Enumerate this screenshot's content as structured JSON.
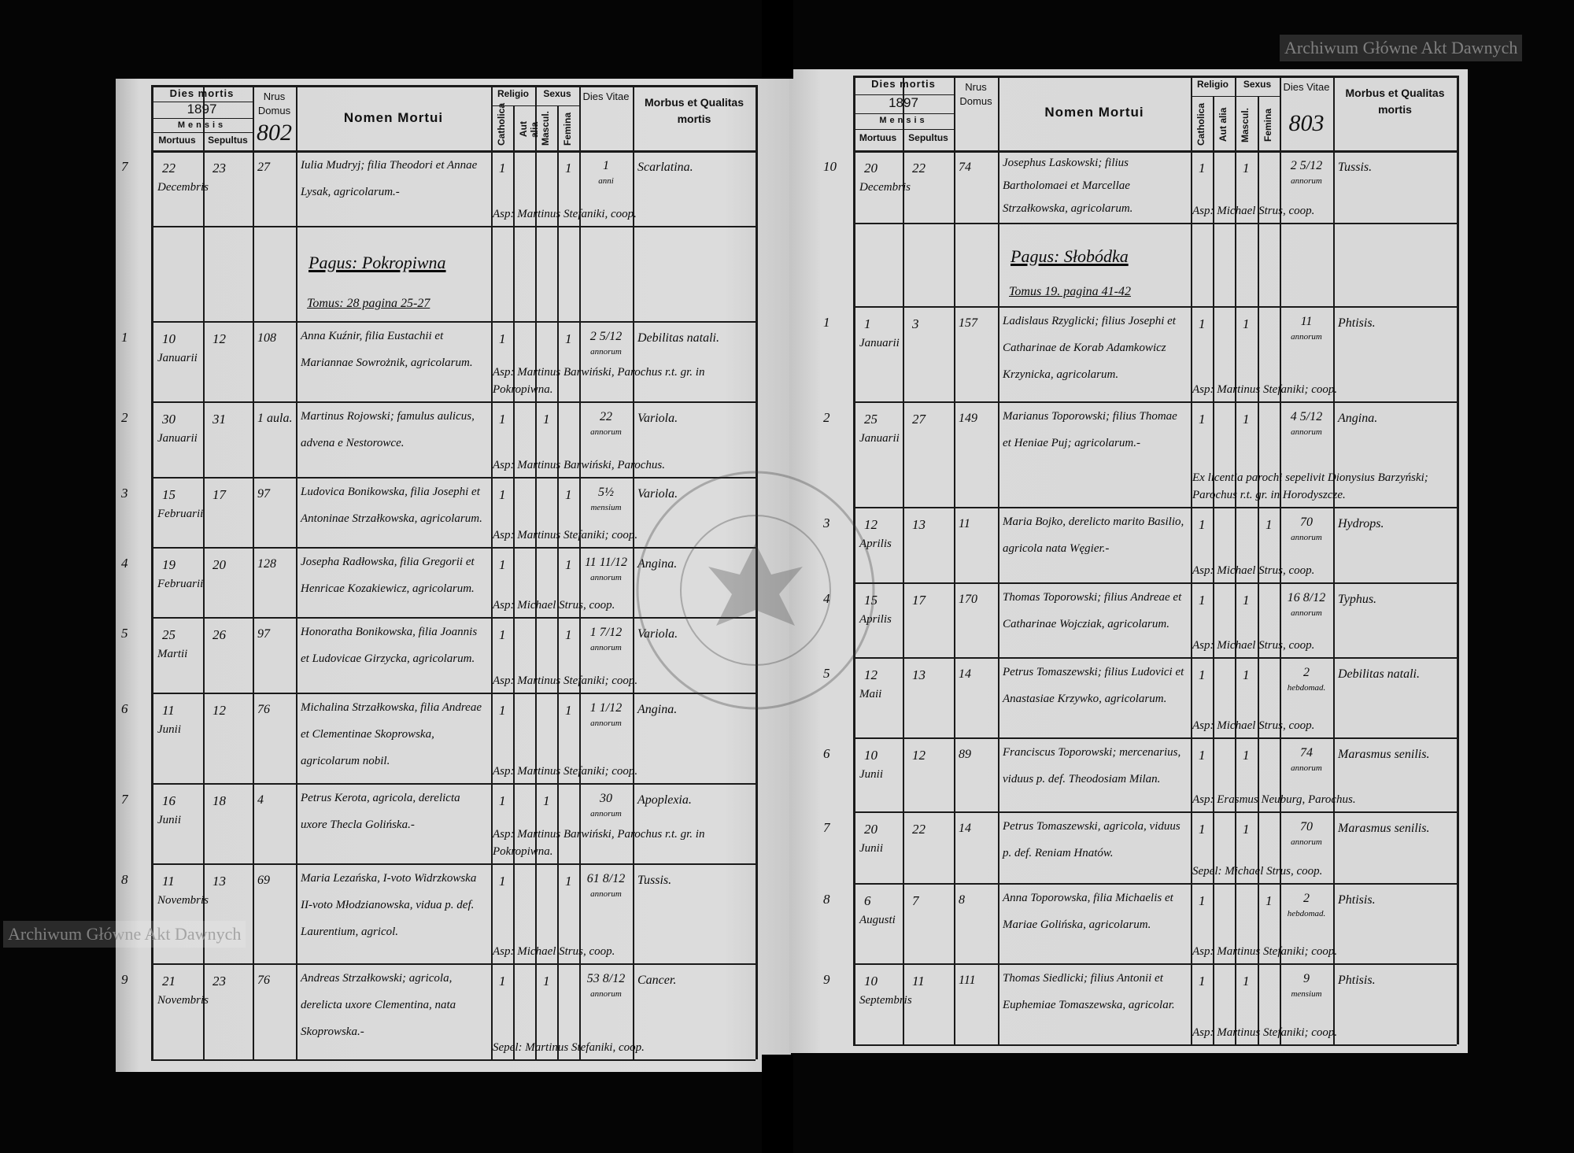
{
  "document": {
    "headers": {
      "dies_mortis": "Dies mortis",
      "year": "1897",
      "mensis": "Mensis",
      "mortuus": "Mortuus",
      "sepultus": "Sepultus",
      "nrus_domus": "Nrus Domus",
      "nomen_mortui": "Nomen Mortui",
      "religio": "Religio",
      "catholica": "Catholica",
      "aut_alia": "Aut alia",
      "sexus": "Sexus",
      "mascul": "Mascul.",
      "femina": "Femina",
      "dies_vitae": "Dies Vitae",
      "morbus": "Morbus et Qualitas mortis"
    },
    "watermark": "Archiwum Główne Akt Dawnych",
    "seal_text": "ARCHIWUM GŁÓWNE AKT DAWNYCH"
  },
  "left": {
    "page_number": "802",
    "pagus": "Pagus: Pokropiwna",
    "tomus": "Tomus: 28 pagina 25-27",
    "entries": [
      {
        "no": "7",
        "mortuus": "22",
        "sepultus": "23",
        "month": "Decembris",
        "domus": "27",
        "name": "Iulia Mudryj; filia Theodori et Annae Lysak, agricolarum.-",
        "sex": "F",
        "age": "1",
        "age_unit": "anni",
        "morbus": "Scarlatina.",
        "note": "Asp: Martinus Stefaniki, coop."
      },
      {
        "no": "1",
        "mortuus": "10",
        "sepultus": "12",
        "month": "Januarii",
        "domus": "108",
        "name": "Anna Kuźnir, filia Eustachii et Mariannae Sowrożnik, agricolarum.",
        "sex": "F",
        "age": "2 5/12",
        "age_unit": "annorum",
        "morbus": "Debilitas natali.",
        "note": "Asp: Martinus Barwiński, Parochus r.t. gr. in Pokropiwna."
      },
      {
        "no": "2",
        "mortuus": "30",
        "sepultus": "31",
        "month": "Januarii",
        "domus": "1 aula.",
        "name": "Martinus Rojowski; famulus aulicus, advena e Nestorowce.",
        "sex": "M",
        "age": "22",
        "age_unit": "annorum",
        "morbus": "Variola.",
        "note": "Asp: Martinus Barwiński, Parochus."
      },
      {
        "no": "3",
        "mortuus": "15",
        "sepultus": "17",
        "month": "Februarii",
        "domus": "97",
        "name": "Ludovica Bonikowska, filia Josephi et Antoninae Strzałkowska, agricolarum.",
        "sex": "F",
        "age": "5½",
        "age_unit": "mensium",
        "morbus": "Variola.",
        "note": "Asp: Martinus Stefaniki; coop."
      },
      {
        "no": "4",
        "mortuus": "19",
        "sepultus": "20",
        "month": "Februarii",
        "domus": "128",
        "name": "Josepha Radłowska, filia Gregorii et Henricae Kozakiewicz, agricolarum.",
        "sex": "F",
        "age": "11 11/12",
        "age_unit": "annorum",
        "morbus": "Angina.",
        "note": "Asp: Michael Strus, coop."
      },
      {
        "no": "5",
        "mortuus": "25",
        "sepultus": "26",
        "month": "Martii",
        "domus": "97",
        "name": "Honoratha Bonikowska, filia Joannis et Ludovicae Girzycka, agricolarum.",
        "sex": "F",
        "age": "1 7/12",
        "age_unit": "annorum",
        "morbus": "Variola.",
        "note": "Asp: Martinus Stefaniki; coop."
      },
      {
        "no": "6",
        "mortuus": "11",
        "sepultus": "12",
        "month": "Junii",
        "domus": "76",
        "name": "Michalina Strzałkowska, filia Andreae et Clementinae Skoprowska, agricolarum nobil.",
        "sex": "F",
        "age": "1 1/12",
        "age_unit": "annorum",
        "morbus": "Angina.",
        "note": "Asp: Martinus Stefaniki; coop."
      },
      {
        "no": "7",
        "mortuus": "16",
        "sepultus": "18",
        "month": "Junii",
        "domus": "4",
        "name": "Petrus Kerota, agricola, derelicta uxore Thecla Golińska.-",
        "sex": "M",
        "age": "30",
        "age_unit": "annorum",
        "morbus": "Apoplexia.",
        "note": "Asp: Martinus Barwiński, Parochus r.t. gr. in Pokropiwna."
      },
      {
        "no": "8",
        "mortuus": "11",
        "sepultus": "13",
        "month": "Novembris",
        "domus": "69",
        "name": "Maria Lezańska, I-voto Widrzkowska II-voto Młodzianowska, vidua p. def. Laurentium, agricol.",
        "sex": "F",
        "age": "61 8/12",
        "age_unit": "annorum",
        "morbus": "Tussis.",
        "note": "Asp: Michael Strus, coop."
      },
      {
        "no": "9",
        "mortuus": "21",
        "sepultus": "23",
        "month": "Novembris",
        "domus": "76",
        "name": "Andreas Strzałkowski; agricola, derelicta uxore Clementina, nata Skoprowska.-",
        "sex": "M",
        "age": "53 8/12",
        "age_unit": "annorum",
        "morbus": "Cancer.",
        "note": "Sepel: Martinus Stefaniki, coop."
      }
    ]
  },
  "right": {
    "page_number": "803",
    "pagus": "Pagus: Słobódka",
    "tomus": "Tomus 19. pagina 41-42",
    "entries": [
      {
        "no": "10",
        "mortuus": "20",
        "sepultus": "22",
        "month": "Decembris",
        "domus": "74",
        "name": "Josephus Laskowski; filius Bartholomaei et Marcellae Strzałkowska, agricolarum.",
        "sex": "M",
        "age": "2 5/12",
        "age_unit": "annorum",
        "morbus": "Tussis.",
        "note": "Asp: Michael Strus, coop."
      },
      {
        "no": "1",
        "mortuus": "1",
        "sepultus": "3",
        "month": "Januarii",
        "domus": "157",
        "name": "Ladislaus Rzyglicki; filius Josephi et Catharinae de Korab Adamkowicz Krzynicka, agricolarum.",
        "sex": "M",
        "age": "11",
        "age_unit": "annorum",
        "morbus": "Phtisis.",
        "note": "Asp: Martinus Stefaniki; coop."
      },
      {
        "no": "2",
        "mortuus": "25",
        "sepultus": "27",
        "month": "Januarii",
        "domus": "149",
        "name": "Marianus Toporowski; filius Thomae et Heniae Puj; agricolarum.-",
        "sex": "M",
        "age": "4 5/12",
        "age_unit": "annorum",
        "morbus": "Angina.",
        "note": "Ex licentia parochi sepelivit Dionysius Barzyński; Parochus r.t. gr. in Horodyszcze."
      },
      {
        "no": "3",
        "mortuus": "12",
        "sepultus": "13",
        "month": "Aprilis",
        "domus": "11",
        "name": "Maria Bojko, derelicto marito Basilio, agricola nata Węgier.-",
        "sex": "F",
        "age": "70",
        "age_unit": "annorum",
        "morbus": "Hydrops.",
        "note": "Asp: Michael Strus, coop."
      },
      {
        "no": "4",
        "mortuus": "15",
        "sepultus": "17",
        "month": "Aprilis",
        "domus": "170",
        "name": "Thomas Toporowski; filius Andreae et Catharinae Wojcziak, agricolarum.",
        "sex": "M",
        "age": "16 8/12",
        "age_unit": "annorum",
        "morbus": "Typhus.",
        "note": "Asp: Michael Strus, coop."
      },
      {
        "no": "5",
        "mortuus": "12",
        "sepultus": "13",
        "month": "Maii",
        "domus": "14",
        "name": "Petrus Tomaszewski; filius Ludovici et Anastasiae Krzywko, agricolarum.",
        "sex": "M",
        "age": "2",
        "age_unit": "hebdomad.",
        "morbus": "Debilitas natali.",
        "note": "Asp: Michael Strus, coop."
      },
      {
        "no": "6",
        "mortuus": "10",
        "sepultus": "12",
        "month": "Junii",
        "domus": "89",
        "name": "Franciscus Toporowski; mercenarius, viduus p. def. Theodosiam Milan.",
        "sex": "M",
        "age": "74",
        "age_unit": "annorum",
        "morbus": "Marasmus senilis.",
        "note": "Asp: Erasmus Neuburg, Parochus."
      },
      {
        "no": "7",
        "mortuus": "20",
        "sepultus": "22",
        "month": "Junii",
        "domus": "14",
        "name": "Petrus Tomaszewski, agricola, viduus p. def. Reniam Hnatów.",
        "sex": "M",
        "age": "70",
        "age_unit": "annorum",
        "morbus": "Marasmus senilis.",
        "note": "Sepel: Michael Strus, coop."
      },
      {
        "no": "8",
        "mortuus": "6",
        "sepultus": "7",
        "month": "Augusti",
        "domus": "8",
        "name": "Anna Toporowska, filia Michaelis et Mariae Golińska, agricolarum.",
        "sex": "F",
        "age": "2",
        "age_unit": "hebdomad.",
        "morbus": "Phtisis.",
        "note": "Asp: Martinus Stefaniki; coop."
      },
      {
        "no": "9",
        "mortuus": "10",
        "sepultus": "11",
        "month": "Septembris",
        "domus": "111",
        "name": "Thomas Siedlicki; filius Antonii et Euphemiae Tomaszewska, agricolar.",
        "sex": "M",
        "age": "9",
        "age_unit": "mensium",
        "morbus": "Phtisis.",
        "note": "Asp: Martinus Stefaniki; coop."
      }
    ]
  }
}
